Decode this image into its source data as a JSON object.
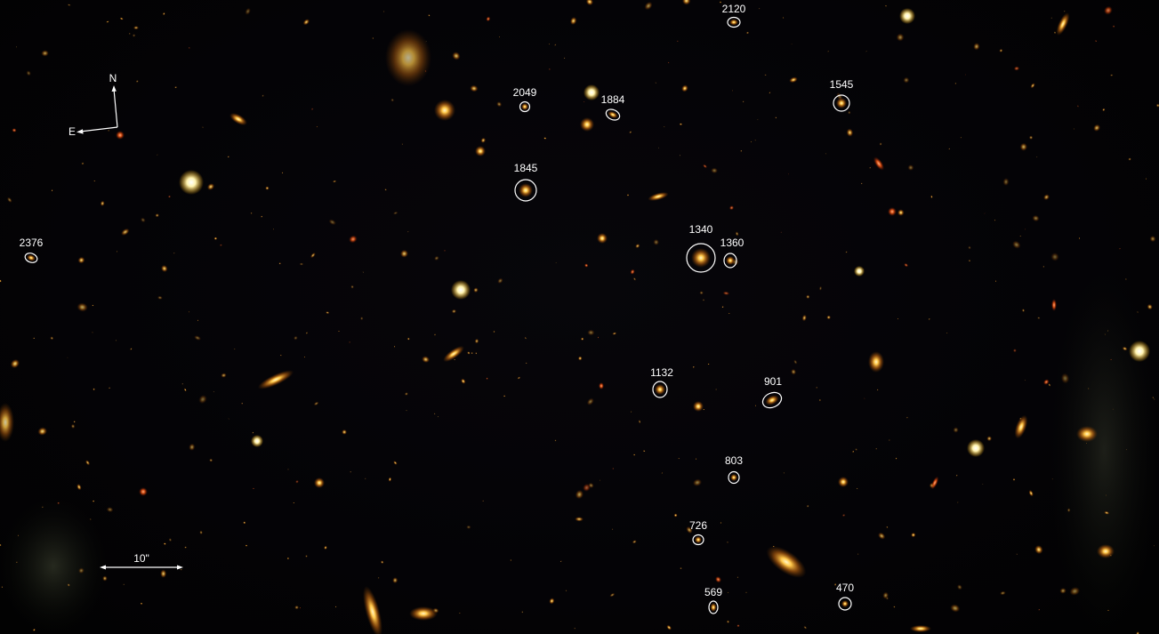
{
  "image": {
    "description_labels_only": true
  },
  "compass": {
    "north_label": "N",
    "east_label": "E"
  },
  "scale_bar": {
    "label": "10\""
  },
  "galaxy_labels": [
    {
      "id": "2120"
    },
    {
      "id": "2049"
    },
    {
      "id": "1884"
    },
    {
      "id": "1545"
    },
    {
      "id": "1845"
    },
    {
      "id": "1340"
    },
    {
      "id": "1360"
    },
    {
      "id": "2376"
    },
    {
      "id": "1132"
    },
    {
      "id": "901"
    },
    {
      "id": "803"
    },
    {
      "id": "726"
    },
    {
      "id": "569"
    },
    {
      "id": "470"
    }
  ],
  "colors": {
    "background": "#030204",
    "galaxy_core": "#ffd36a",
    "galaxy_halo": "#e07a10",
    "annotation": "#ffffff"
  }
}
